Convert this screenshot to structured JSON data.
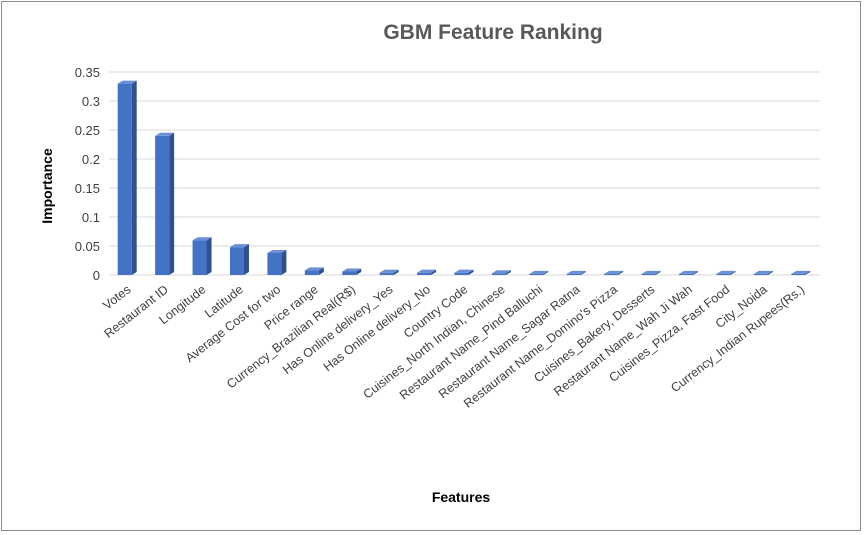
{
  "chart_data": {
    "type": "bar",
    "title": "GBM Feature Ranking",
    "xlabel": "Features",
    "ylabel": "Importance",
    "ylim": [
      0,
      0.35
    ],
    "yticks": [
      "0",
      "0.05",
      "0.1",
      "0.15",
      "0.2",
      "0.25",
      "0.3",
      "0.35"
    ],
    "grid": true,
    "legend": "none",
    "bar_color": "#4472C4",
    "categories": [
      "Votes",
      "Restaurant ID",
      "Longitude",
      "Latitude",
      "Average Cost for two",
      "Price range",
      "Currency_Brazilian Real(R$)",
      "Has Online delivery_Yes",
      "Has Online delivery_No",
      "Country Code",
      "Cuisines_North Indian, Chinese",
      "Restaurant Name_Pind Balluchi",
      "Restaurant Name_Sagar Ratna",
      "Restaurant Name_Domino's Pizza",
      "Cuisines_Bakery, Desserts",
      "Restaurant Name_Wah Ji Wah",
      "Cuisines_Pizza, Fast Food",
      "City_Noida",
      "Currency_Indian Rupees(Rs.)"
    ],
    "values": [
      0.33,
      0.24,
      0.06,
      0.048,
      0.038,
      0.008,
      0.006,
      0.004,
      0.004,
      0.004,
      0.003,
      0.002,
      0.002,
      0.002,
      0.002,
      0.002,
      0.002,
      0.002,
      0.002
    ]
  }
}
